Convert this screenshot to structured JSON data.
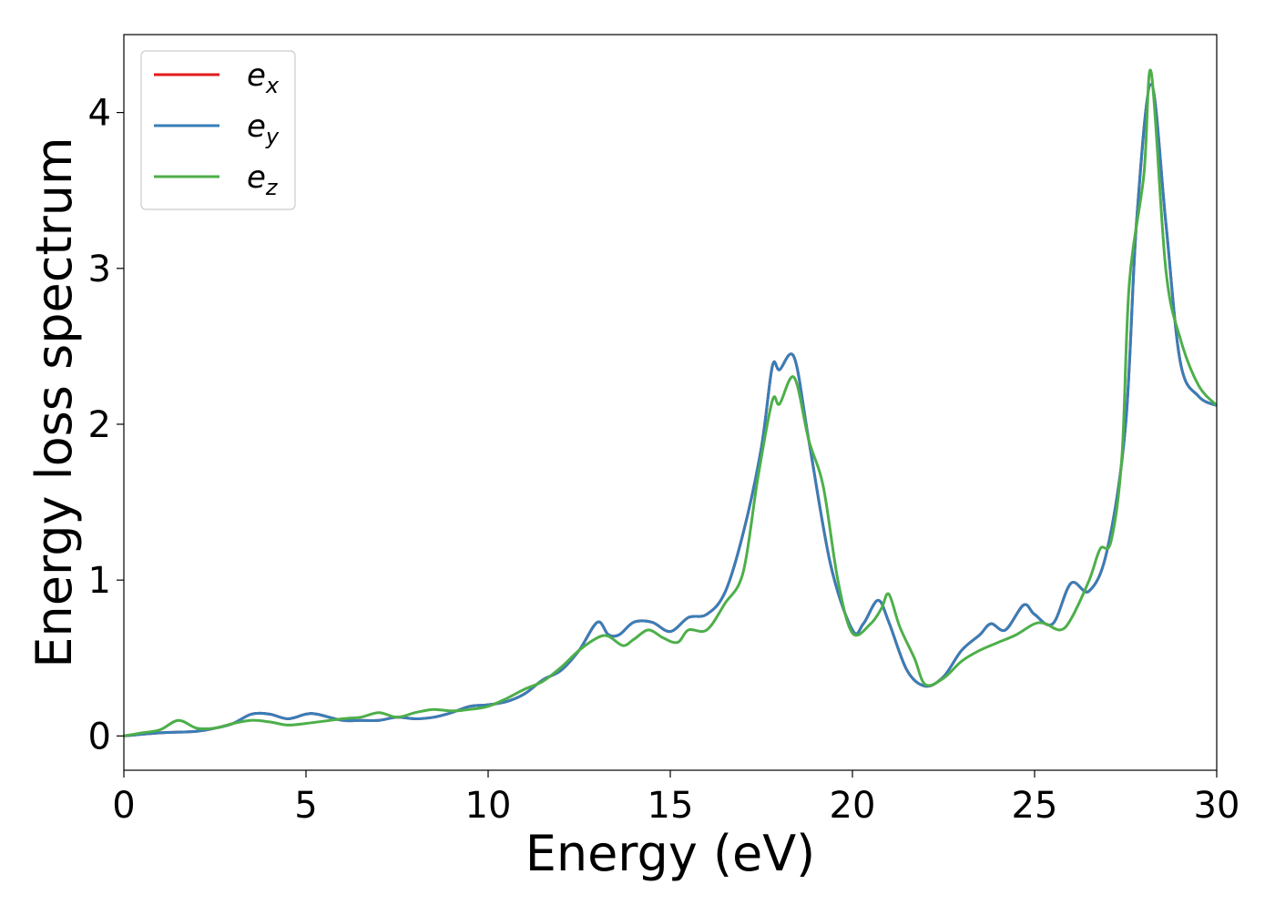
{
  "chart_data": {
    "type": "line",
    "title": "",
    "xlabel": "Energy (eV)",
    "ylabel": "Energy loss spectrum",
    "xlim": [
      0,
      30
    ],
    "ylim": [
      -0.22,
      4.5
    ],
    "xticks": [
      0,
      5,
      10,
      15,
      20,
      25,
      30
    ],
    "yticks": [
      0,
      1,
      2,
      3,
      4
    ],
    "x_tick_labels": [
      "0",
      "5",
      "10",
      "15",
      "20",
      "25",
      "30"
    ],
    "y_tick_labels": [
      "0",
      "1",
      "2",
      "3",
      "4"
    ],
    "grid": false,
    "legend_position": "top-left",
    "series": [
      {
        "name": "e_x",
        "legend_base": "e",
        "legend_sub": "x",
        "color": "#e41a1c",
        "points": [
          [
            0,
            0
          ],
          [
            1,
            0.02
          ],
          [
            2,
            0.03
          ],
          [
            2.5,
            0.05
          ],
          [
            3,
            0.08
          ],
          [
            3.5,
            0.14
          ],
          [
            4,
            0.14
          ],
          [
            4.5,
            0.11
          ],
          [
            5,
            0.14
          ],
          [
            5.3,
            0.14
          ],
          [
            6,
            0.1
          ],
          [
            6.5,
            0.1
          ],
          [
            7,
            0.1
          ],
          [
            7.5,
            0.12
          ],
          [
            8,
            0.11
          ],
          [
            8.5,
            0.12
          ],
          [
            9,
            0.15
          ],
          [
            9.5,
            0.19
          ],
          [
            10,
            0.2
          ],
          [
            10.5,
            0.22
          ],
          [
            11,
            0.27
          ],
          [
            11.5,
            0.36
          ],
          [
            12,
            0.42
          ],
          [
            12.5,
            0.55
          ],
          [
            13,
            0.73
          ],
          [
            13.3,
            0.65
          ],
          [
            13.6,
            0.65
          ],
          [
            14,
            0.73
          ],
          [
            14.5,
            0.73
          ],
          [
            15,
            0.67
          ],
          [
            15.5,
            0.76
          ],
          [
            16,
            0.78
          ],
          [
            16.5,
            0.92
          ],
          [
            17,
            1.3
          ],
          [
            17.5,
            1.85
          ],
          [
            17.8,
            2.37
          ],
          [
            18,
            2.35
          ],
          [
            18.4,
            2.43
          ],
          [
            18.8,
            1.9
          ],
          [
            19.4,
            1.1
          ],
          [
            20,
            0.68
          ],
          [
            20.3,
            0.72
          ],
          [
            20.7,
            0.87
          ],
          [
            21,
            0.73
          ],
          [
            21.5,
            0.42
          ],
          [
            22,
            0.32
          ],
          [
            22.5,
            0.38
          ],
          [
            23,
            0.55
          ],
          [
            23.5,
            0.65
          ],
          [
            23.8,
            0.72
          ],
          [
            24.2,
            0.68
          ],
          [
            24.7,
            0.84
          ],
          [
            25,
            0.78
          ],
          [
            25.5,
            0.72
          ],
          [
            26,
            0.98
          ],
          [
            26.5,
            0.93
          ],
          [
            27,
            1.2
          ],
          [
            27.5,
            2.0
          ],
          [
            27.8,
            3.3
          ],
          [
            28.2,
            4.18
          ],
          [
            28.6,
            3.3
          ],
          [
            29,
            2.4
          ],
          [
            29.5,
            2.18
          ],
          [
            30,
            2.12
          ]
        ]
      },
      {
        "name": "e_y",
        "legend_base": "e",
        "legend_sub": "y",
        "color": "#377eb8",
        "points": [
          [
            0,
            0
          ],
          [
            1,
            0.02
          ],
          [
            2,
            0.03
          ],
          [
            2.5,
            0.05
          ],
          [
            3,
            0.08
          ],
          [
            3.5,
            0.14
          ],
          [
            4,
            0.14
          ],
          [
            4.5,
            0.11
          ],
          [
            5,
            0.14
          ],
          [
            5.3,
            0.14
          ],
          [
            6,
            0.1
          ],
          [
            6.5,
            0.1
          ],
          [
            7,
            0.1
          ],
          [
            7.5,
            0.12
          ],
          [
            8,
            0.11
          ],
          [
            8.5,
            0.12
          ],
          [
            9,
            0.15
          ],
          [
            9.5,
            0.19
          ],
          [
            10,
            0.2
          ],
          [
            10.5,
            0.22
          ],
          [
            11,
            0.27
          ],
          [
            11.5,
            0.36
          ],
          [
            12,
            0.42
          ],
          [
            12.5,
            0.55
          ],
          [
            13,
            0.73
          ],
          [
            13.3,
            0.65
          ],
          [
            13.6,
            0.65
          ],
          [
            14,
            0.73
          ],
          [
            14.5,
            0.73
          ],
          [
            15,
            0.67
          ],
          [
            15.5,
            0.76
          ],
          [
            16,
            0.78
          ],
          [
            16.5,
            0.92
          ],
          [
            17,
            1.3
          ],
          [
            17.5,
            1.85
          ],
          [
            17.8,
            2.37
          ],
          [
            18,
            2.35
          ],
          [
            18.4,
            2.43
          ],
          [
            18.8,
            1.9
          ],
          [
            19.4,
            1.1
          ],
          [
            20,
            0.68
          ],
          [
            20.3,
            0.72
          ],
          [
            20.7,
            0.87
          ],
          [
            21,
            0.73
          ],
          [
            21.5,
            0.42
          ],
          [
            22,
            0.32
          ],
          [
            22.5,
            0.38
          ],
          [
            23,
            0.55
          ],
          [
            23.5,
            0.65
          ],
          [
            23.8,
            0.72
          ],
          [
            24.2,
            0.68
          ],
          [
            24.7,
            0.84
          ],
          [
            25,
            0.78
          ],
          [
            25.5,
            0.72
          ],
          [
            26,
            0.98
          ],
          [
            26.5,
            0.93
          ],
          [
            27,
            1.2
          ],
          [
            27.5,
            2.0
          ],
          [
            27.8,
            3.3
          ],
          [
            28.2,
            4.18
          ],
          [
            28.6,
            3.3
          ],
          [
            29,
            2.4
          ],
          [
            29.5,
            2.18
          ],
          [
            30,
            2.12
          ]
        ]
      },
      {
        "name": "e_z",
        "legend_base": "e",
        "legend_sub": "z",
        "color": "#4daf4a",
        "points": [
          [
            0,
            0
          ],
          [
            0.5,
            0.02
          ],
          [
            1,
            0.04
          ],
          [
            1.5,
            0.1
          ],
          [
            2,
            0.05
          ],
          [
            2.5,
            0.05
          ],
          [
            3,
            0.08
          ],
          [
            3.5,
            0.1
          ],
          [
            4,
            0.09
          ],
          [
            4.5,
            0.07
          ],
          [
            5,
            0.08
          ],
          [
            6,
            0.11
          ],
          [
            6.5,
            0.12
          ],
          [
            7,
            0.15
          ],
          [
            7.5,
            0.12
          ],
          [
            8,
            0.15
          ],
          [
            8.5,
            0.17
          ],
          [
            9,
            0.16
          ],
          [
            9.5,
            0.17
          ],
          [
            10,
            0.19
          ],
          [
            10.5,
            0.24
          ],
          [
            11,
            0.3
          ],
          [
            11.5,
            0.35
          ],
          [
            12,
            0.44
          ],
          [
            12.5,
            0.55
          ],
          [
            13,
            0.63
          ],
          [
            13.3,
            0.64
          ],
          [
            13.7,
            0.58
          ],
          [
            14,
            0.62
          ],
          [
            14.4,
            0.68
          ],
          [
            14.8,
            0.63
          ],
          [
            15.2,
            0.6
          ],
          [
            15.5,
            0.68
          ],
          [
            16,
            0.68
          ],
          [
            16.5,
            0.85
          ],
          [
            17,
            1.05
          ],
          [
            17.4,
            1.65
          ],
          [
            17.8,
            2.15
          ],
          [
            18,
            2.13
          ],
          [
            18.4,
            2.3
          ],
          [
            18.8,
            1.9
          ],
          [
            19.2,
            1.6
          ],
          [
            19.6,
            1.0
          ],
          [
            20,
            0.66
          ],
          [
            20.5,
            0.72
          ],
          [
            20.8,
            0.82
          ],
          [
            21,
            0.91
          ],
          [
            21.3,
            0.7
          ],
          [
            21.7,
            0.5
          ],
          [
            22,
            0.33
          ],
          [
            22.5,
            0.37
          ],
          [
            23,
            0.48
          ],
          [
            23.5,
            0.55
          ],
          [
            24,
            0.6
          ],
          [
            24.5,
            0.65
          ],
          [
            25,
            0.72
          ],
          [
            25.3,
            0.72
          ],
          [
            25.7,
            0.68
          ],
          [
            26,
            0.75
          ],
          [
            26.5,
            1.0
          ],
          [
            26.8,
            1.2
          ],
          [
            27.1,
            1.25
          ],
          [
            27.4,
            1.8
          ],
          [
            27.6,
            2.9
          ],
          [
            28,
            3.6
          ],
          [
            28.2,
            4.26
          ],
          [
            28.6,
            3.0
          ],
          [
            29,
            2.55
          ],
          [
            29.5,
            2.25
          ],
          [
            30,
            2.12
          ]
        ]
      }
    ]
  }
}
